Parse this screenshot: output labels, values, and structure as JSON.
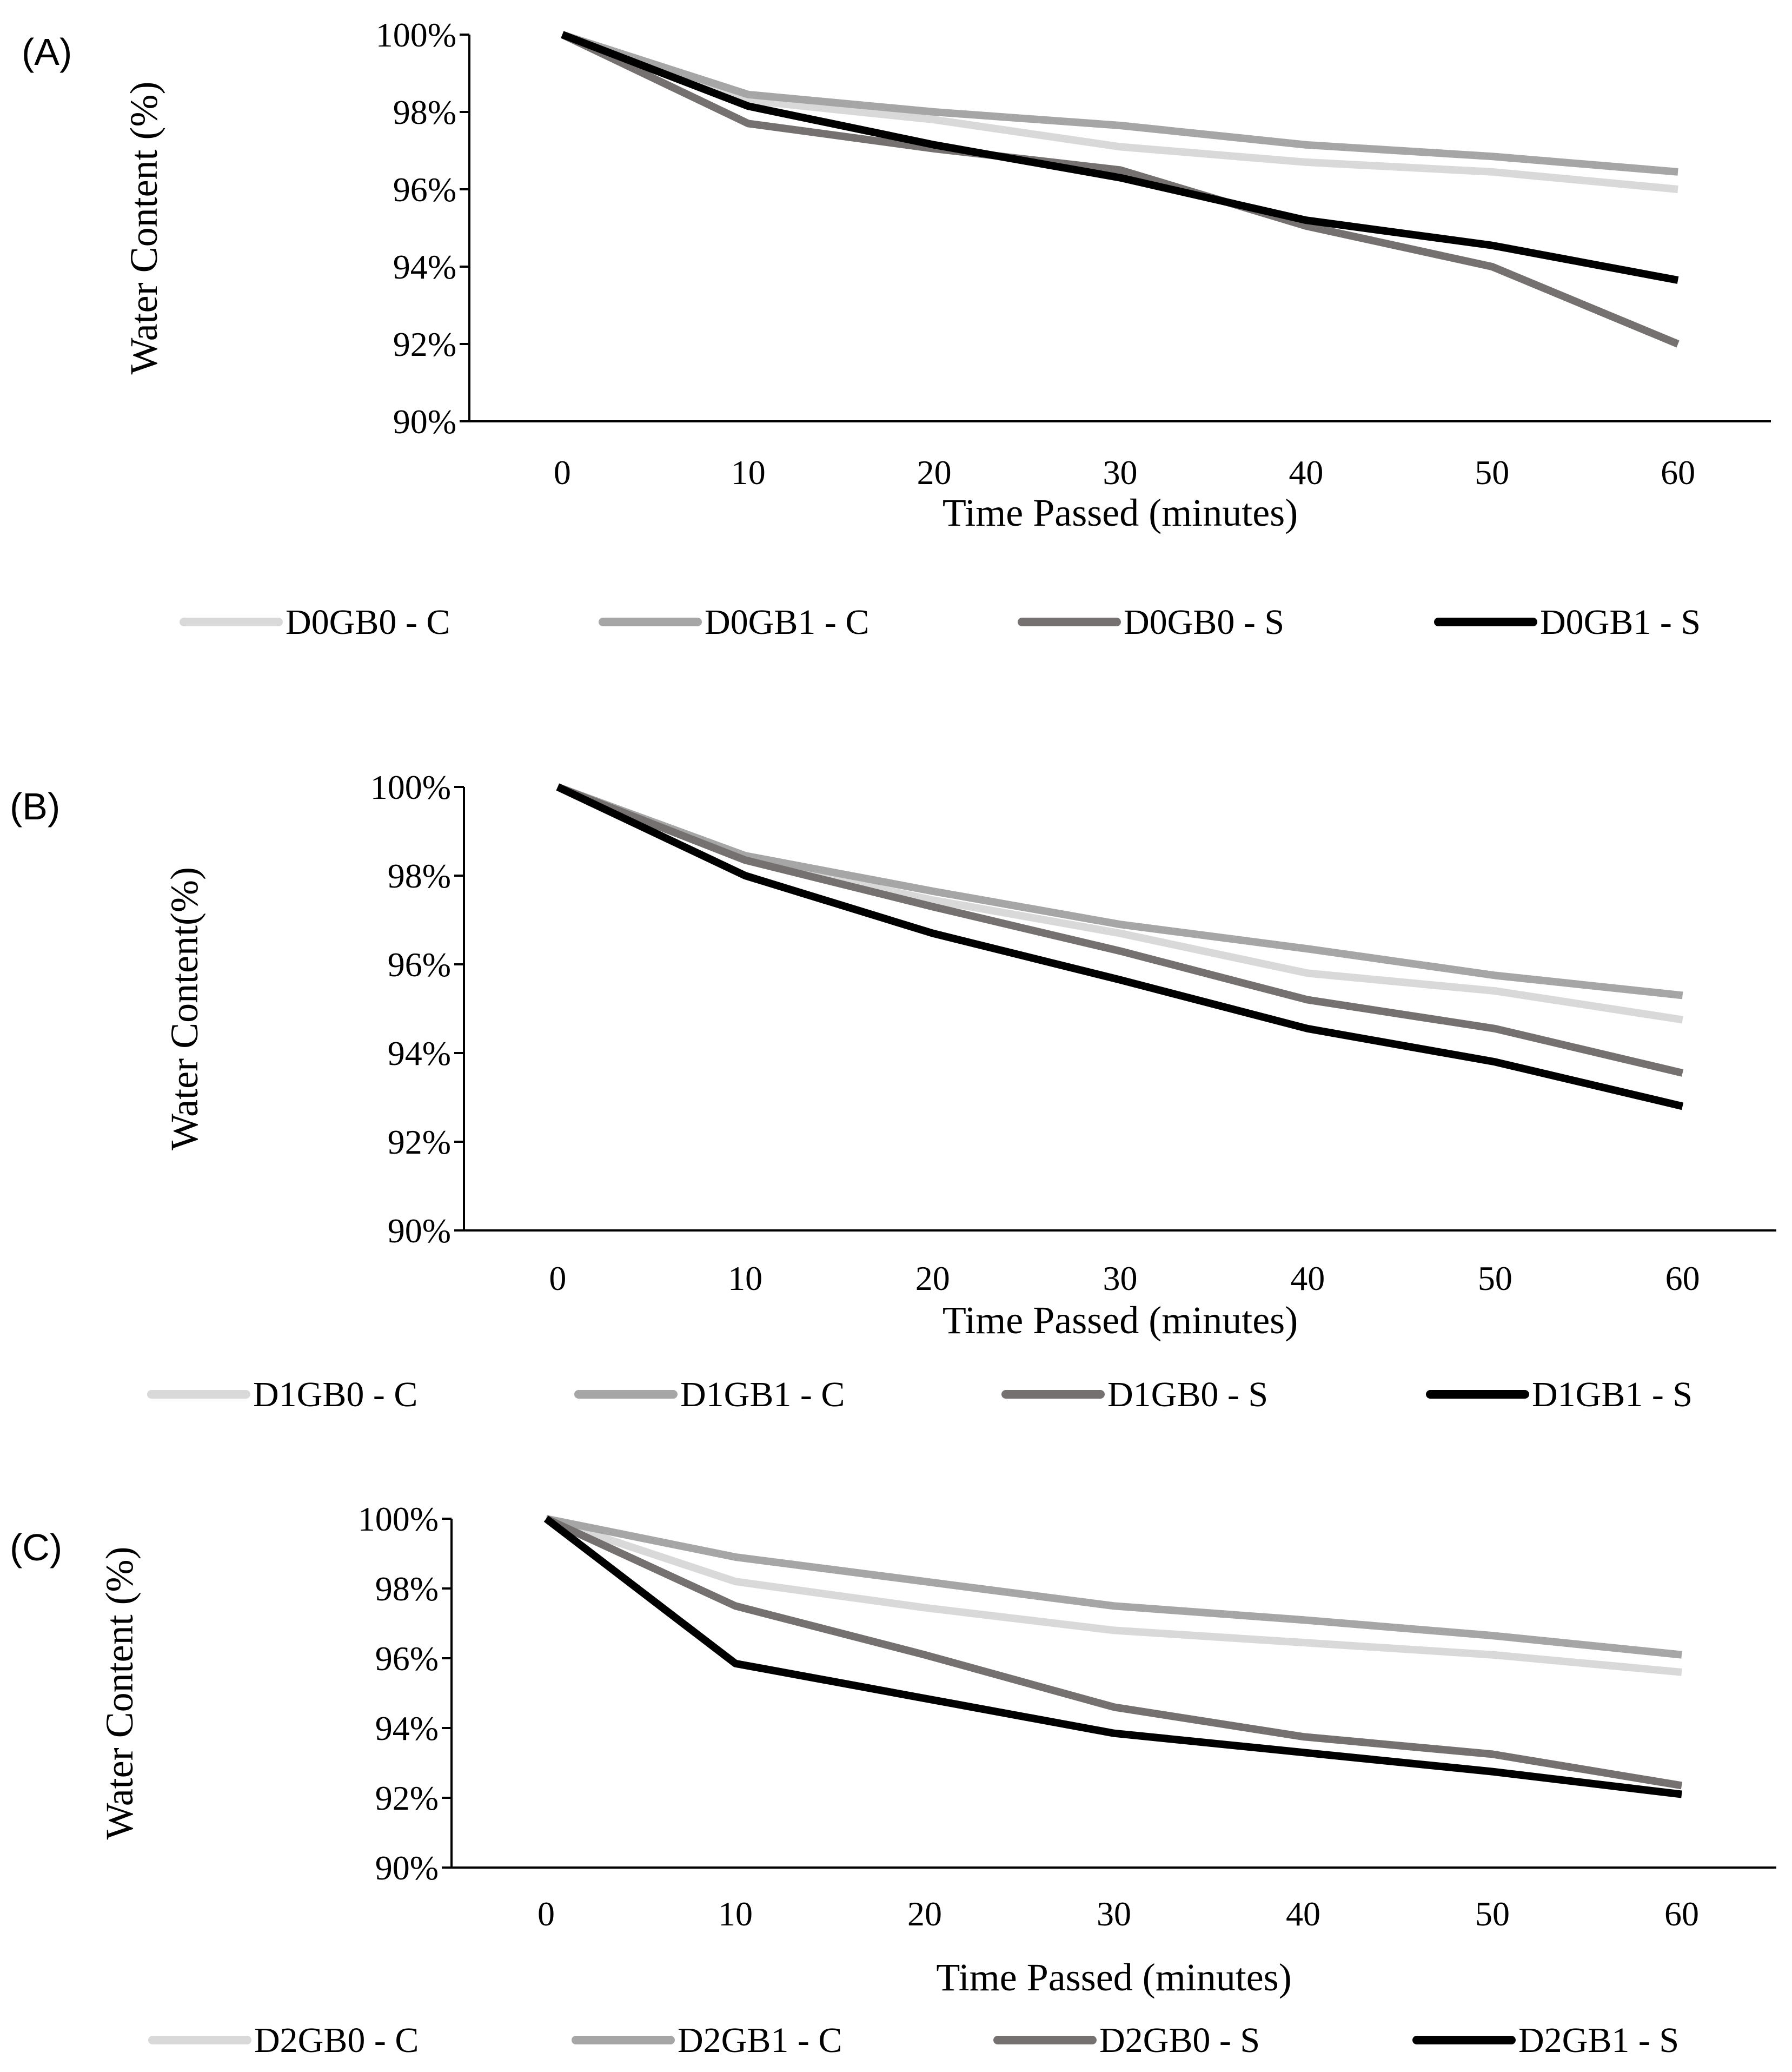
{
  "chart_data": [
    {
      "type": "line",
      "panel_label": "(A)",
      "xlabel": "Time Passed (minutes)",
      "ylabel": "Water Content (%)",
      "x": [
        0,
        10,
        20,
        30,
        40,
        50,
        60
      ],
      "x_tick_labels": [
        "0",
        "10",
        "20",
        "30",
        "40",
        "50",
        "60"
      ],
      "ylim": [
        90,
        100
      ],
      "y_ticks": [
        90,
        92,
        94,
        96,
        98,
        100
      ],
      "y_tick_labels": [
        "90%",
        "92%",
        "94%",
        "96%",
        "98%",
        "100%"
      ],
      "grid": false,
      "legend_position": "bottom",
      "series": [
        {
          "name": "D0GB0 - C",
          "color": "#d9d9d9",
          "values": [
            100,
            98.3,
            97.8,
            97.1,
            96.7,
            96.45,
            96.0
          ]
        },
        {
          "name": "D0GB1 - C",
          "color": "#a6a6a6",
          "values": [
            100,
            98.45,
            98.0,
            97.65,
            97.15,
            96.85,
            96.45
          ]
        },
        {
          "name": "D0GB0 - S",
          "color": "#767171",
          "values": [
            100,
            97.7,
            97.05,
            96.5,
            95.05,
            94.0,
            92.0
          ]
        },
        {
          "name": "D0GB1 - S",
          "color": "#000000",
          "values": [
            100,
            98.15,
            97.15,
            96.3,
            95.2,
            94.55,
            93.65
          ]
        }
      ]
    },
    {
      "type": "line",
      "panel_label": "(B)",
      "xlabel": "Time Passed (minutes)",
      "ylabel": "Water Content(%)",
      "x": [
        0,
        10,
        20,
        30,
        40,
        50,
        60
      ],
      "x_tick_labels": [
        "0",
        "10",
        "20",
        "30",
        "40",
        "50",
        "60"
      ],
      "ylim": [
        90,
        100
      ],
      "y_ticks": [
        90,
        92,
        94,
        96,
        98,
        100
      ],
      "y_tick_labels": [
        "90%",
        "92%",
        "94%",
        "96%",
        "98%",
        "100%"
      ],
      "grid": false,
      "legend_position": "bottom",
      "series": [
        {
          "name": "D1GB0 - C",
          "color": "#d9d9d9",
          "values": [
            100,
            98.35,
            97.45,
            96.7,
            95.8,
            95.4,
            94.75
          ]
        },
        {
          "name": "D1GB1 - C",
          "color": "#a6a6a6",
          "values": [
            100,
            98.45,
            97.65,
            96.9,
            96.35,
            95.75,
            95.3
          ]
        },
        {
          "name": "D1GB0 - S",
          "color": "#767171",
          "values": [
            100,
            98.35,
            97.3,
            96.3,
            95.2,
            94.55,
            93.55
          ]
        },
        {
          "name": "D1GB1 - S",
          "color": "#000000",
          "values": [
            100,
            98.0,
            96.7,
            95.65,
            94.55,
            93.8,
            92.8
          ]
        }
      ]
    },
    {
      "type": "line",
      "panel_label": "(C)",
      "xlabel": "Time Passed (minutes)",
      "ylabel": "Water Content (%)",
      "x": [
        0,
        10,
        20,
        30,
        40,
        50,
        60
      ],
      "x_tick_labels": [
        "0",
        "10",
        "20",
        "30",
        "40",
        "50",
        "60"
      ],
      "ylim": [
        90,
        100
      ],
      "y_ticks": [
        90,
        92,
        94,
        96,
        98,
        100
      ],
      "y_tick_labels": [
        "90%",
        "92%",
        "94%",
        "96%",
        "98%",
        "100%"
      ],
      "grid": false,
      "legend_position": "bottom",
      "series": [
        {
          "name": "D2GB0 - C",
          "color": "#d9d9d9",
          "values": [
            100,
            98.2,
            97.45,
            96.8,
            96.45,
            96.1,
            95.6
          ]
        },
        {
          "name": "D2GB1 - C",
          "color": "#a6a6a6",
          "values": [
            100,
            98.9,
            98.2,
            97.5,
            97.1,
            96.65,
            96.1
          ]
        },
        {
          "name": "D2GB0 - S",
          "color": "#767171",
          "values": [
            100,
            97.5,
            96.1,
            94.6,
            93.75,
            93.25,
            92.35
          ]
        },
        {
          "name": "D2GB1 - S",
          "color": "#000000",
          "values": [
            100,
            95.85,
            94.85,
            93.85,
            93.3,
            92.75,
            92.1
          ]
        }
      ]
    }
  ]
}
